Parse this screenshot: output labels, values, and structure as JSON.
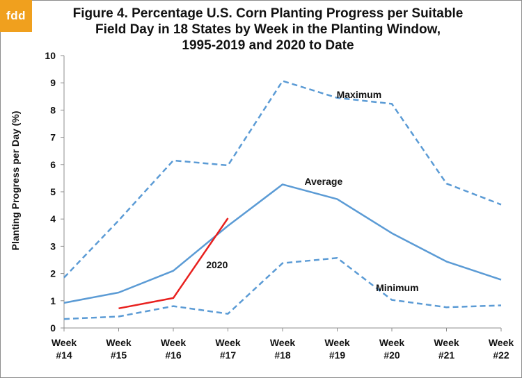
{
  "logo": {
    "text": "fdd"
  },
  "title_lines": [
    "Figure 4. Percentage U.S. Corn Planting Progress per Suitable",
    "Field Day in 18 States by Week in the Planting Window,",
    "1995-2019 and 2020 to Date"
  ],
  "chart_data": {
    "type": "line",
    "title": "Figure 4. Percentage U.S. Corn Planting Progress per Suitable Field Day in 18 States by Week in the Planting Window, 1995-2019 and 2020 to Date",
    "xlabel": "",
    "ylabel": "Planting Progress per Day (%)",
    "ylim": [
      0,
      10
    ],
    "yticks": [
      "0",
      "1",
      "2",
      "3",
      "4",
      "5",
      "6",
      "7",
      "8",
      "9",
      "10"
    ],
    "categories": [
      [
        "Week",
        "#14"
      ],
      [
        "Week",
        "#15"
      ],
      [
        "Week",
        "#16"
      ],
      [
        "Week",
        "#17"
      ],
      [
        "Week",
        "#18"
      ],
      [
        "Week",
        "#19"
      ],
      [
        "Week",
        "#20"
      ],
      [
        "Week",
        "#21"
      ],
      [
        "Week",
        "#22"
      ]
    ],
    "grid": false,
    "legend": "none",
    "series": [
      {
        "name": "Maximum",
        "dash": true,
        "color": "#5b9bd5",
        "values": [
          1.85,
          3.95,
          6.15,
          5.97,
          9.07,
          8.45,
          8.23,
          5.3,
          4.53
        ]
      },
      {
        "name": "Average",
        "dash": false,
        "color": "#5b9bd5",
        "values": [
          0.92,
          1.3,
          2.1,
          3.75,
          5.27,
          4.73,
          3.48,
          2.44,
          1.77
        ]
      },
      {
        "name": "Minimum",
        "dash": true,
        "color": "#5b9bd5",
        "values": [
          0.33,
          0.42,
          0.8,
          0.52,
          2.38,
          2.57,
          1.03,
          0.76,
          0.83
        ]
      },
      {
        "name": "2020",
        "dash": false,
        "color": "#e8201e",
        "values": [
          null,
          0.72,
          1.1,
          4.03,
          null,
          null,
          null,
          null,
          null
        ]
      }
    ],
    "annotations": [
      {
        "text": "Maximum",
        "series": "Maximum"
      },
      {
        "text": "Average",
        "series": "Average"
      },
      {
        "text": "Minimum",
        "series": "Minimum"
      },
      {
        "text": "2020",
        "series": "2020"
      }
    ]
  }
}
